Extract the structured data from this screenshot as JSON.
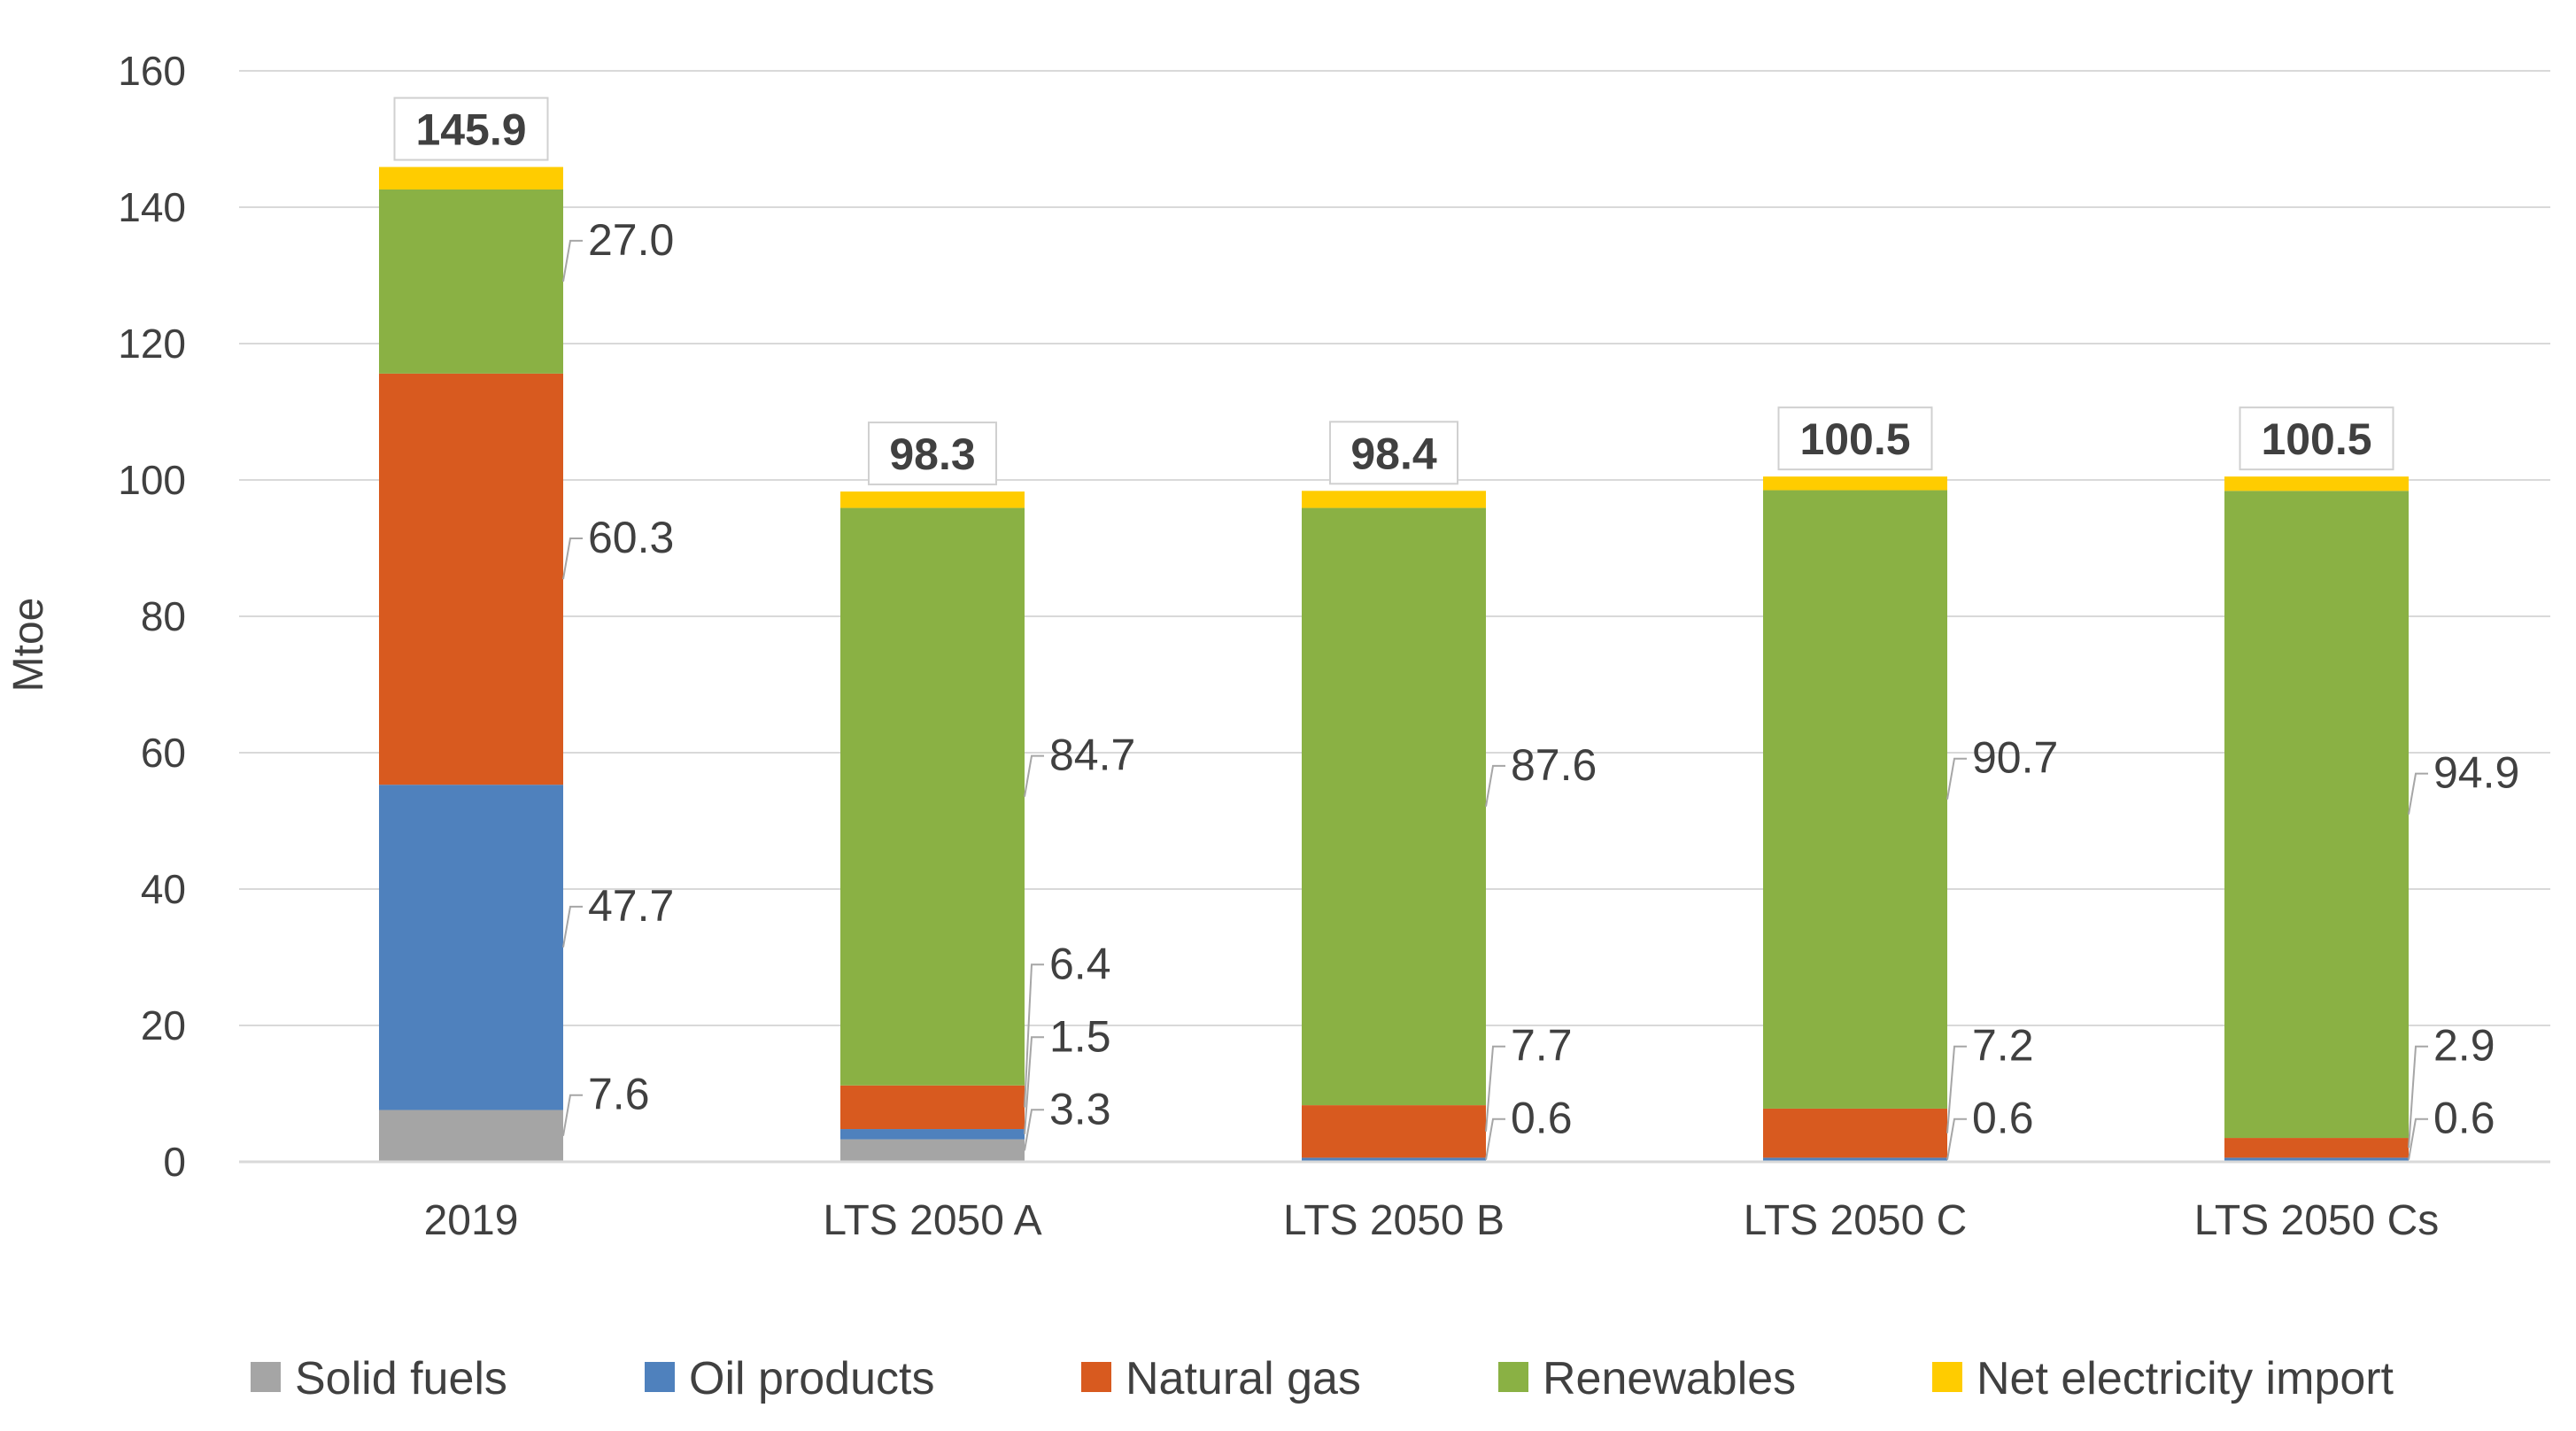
{
  "chart_data": {
    "type": "bar",
    "stacked": true,
    "title": "",
    "xlabel": "",
    "ylabel": "Mtoe",
    "ylim": [
      0,
      160
    ],
    "yticks": [
      0,
      20,
      40,
      60,
      80,
      100,
      120,
      140,
      160
    ],
    "grid": true,
    "legend_position": "bottom",
    "categories": [
      "2019",
      "LTS 2050 A",
      "LTS 2050 B",
      "LTS 2050 C",
      "LTS 2050 Cs"
    ],
    "series": [
      {
        "name": "Solid fuels",
        "color": "#a5a5a5",
        "values": [
          7.6,
          3.3,
          0,
          0,
          0
        ]
      },
      {
        "name": "Oil products",
        "color": "#4f81bd",
        "values": [
          47.7,
          1.5,
          0.6,
          0.6,
          0.6
        ]
      },
      {
        "name": "Natural gas",
        "color": "#d85a1f",
        "values": [
          60.3,
          6.4,
          7.7,
          7.2,
          2.9
        ]
      },
      {
        "name": "Renewables",
        "color": "#8ab144",
        "values": [
          27.0,
          84.7,
          87.6,
          90.7,
          94.9
        ]
      },
      {
        "name": "Net electricity import",
        "color": "#ffcc00",
        "values": [
          3.3,
          2.4,
          2.5,
          2.0,
          2.1
        ]
      }
    ],
    "data_labels": [
      [
        {
          "series": "Solid fuels",
          "text": "7.6"
        },
        {
          "series": "Oil products",
          "text": "47.7"
        },
        {
          "series": "Natural gas",
          "text": "60.3"
        },
        {
          "series": "Renewables",
          "text": "27.0"
        }
      ],
      [
        {
          "series": "Solid fuels",
          "text": "3.3"
        },
        {
          "series": "Oil products",
          "text": "1.5"
        },
        {
          "series": "Natural gas",
          "text": "6.4"
        },
        {
          "series": "Renewables",
          "text": "84.7"
        }
      ],
      [
        {
          "series": "Oil products",
          "text": "0.6"
        },
        {
          "series": "Natural gas",
          "text": "7.7"
        },
        {
          "series": "Renewables",
          "text": "87.6"
        }
      ],
      [
        {
          "series": "Oil products",
          "text": "0.6"
        },
        {
          "series": "Natural gas",
          "text": "7.2"
        },
        {
          "series": "Renewables",
          "text": "90.7"
        }
      ],
      [
        {
          "series": "Oil products",
          "text": "0.6"
        },
        {
          "series": "Natural gas",
          "text": "2.9"
        },
        {
          "series": "Renewables",
          "text": "94.9"
        }
      ]
    ],
    "totals": [
      "145.9",
      "98.3",
      "98.4",
      "100.5",
      "100.5"
    ]
  }
}
